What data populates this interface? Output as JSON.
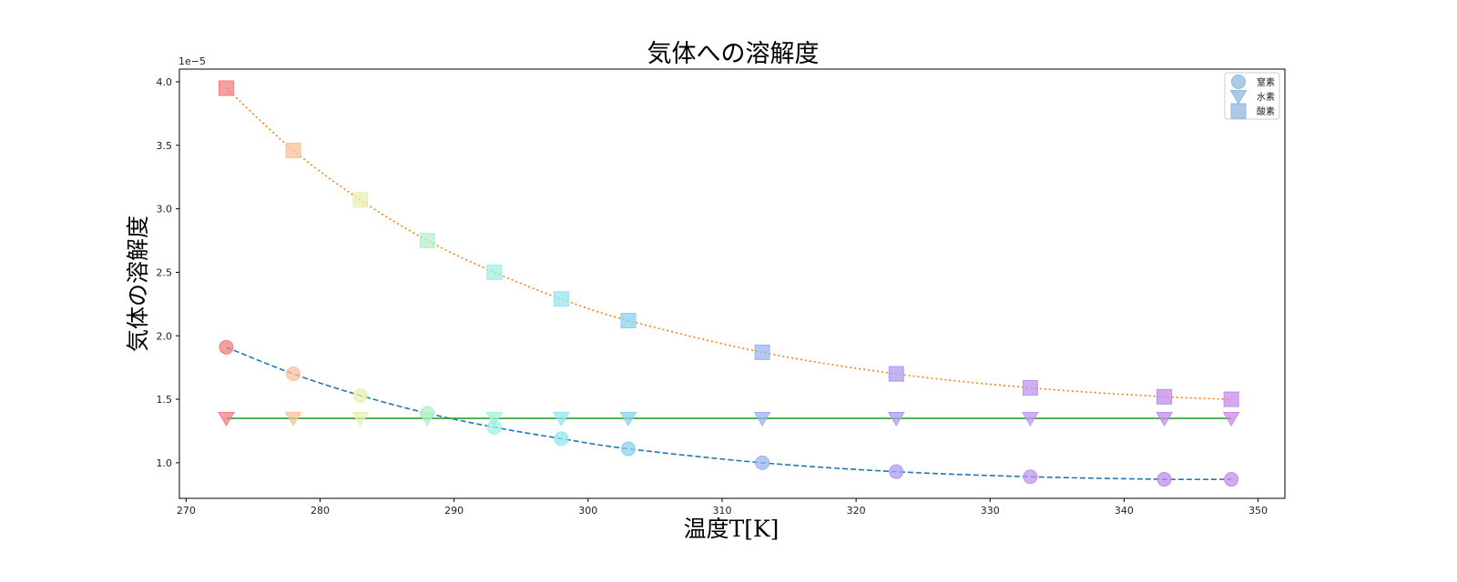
{
  "chart_data": {
    "type": "line",
    "title": "気体への溶解度",
    "xlabel": "温度T[K]",
    "ylabel": "気体の溶解度",
    "y_scale_label": "1e−5",
    "xlim": [
      269.5,
      352
    ],
    "ylim": [
      0.72,
      4.1
    ],
    "y_multiplier": 1e-05,
    "x_ticks": [
      270,
      280,
      290,
      300,
      310,
      320,
      330,
      340,
      350
    ],
    "y_ticks": [
      1.0,
      1.5,
      2.0,
      2.5,
      3.0,
      3.5,
      4.0
    ],
    "grid": false,
    "legend_position": "top-right",
    "x": [
      273,
      278,
      283,
      288,
      293,
      298,
      303,
      313,
      323,
      333,
      343,
      348
    ],
    "point_colors": [
      "#f28080",
      "#fcc29e",
      "#e6f0b4",
      "#b4f0c8",
      "#a0f0e1",
      "#96e6f0",
      "#8cd2f0",
      "#9ab4ee",
      "#ad9cee",
      "#c096ee",
      "#c08cee",
      "#c88ce8"
    ],
    "series": [
      {
        "name": "窒素",
        "marker": "circle",
        "line_color": "#1f77b4",
        "line_style": "dashed",
        "values": [
          1.91,
          1.7,
          1.53,
          1.39,
          1.28,
          1.19,
          1.11,
          1.0,
          0.93,
          0.89,
          0.87,
          0.87
        ]
      },
      {
        "name": "水素",
        "marker": "triangle-down",
        "line_color": "#2ca02c",
        "line_style": "solid",
        "values": [
          1.35,
          1.35,
          1.35,
          1.35,
          1.35,
          1.35,
          1.35,
          1.35,
          1.35,
          1.35,
          1.35,
          1.35
        ]
      },
      {
        "name": "酸素",
        "marker": "square",
        "line_color": "#ff7f0e",
        "line_style": "dotted",
        "values": [
          3.95,
          3.46,
          3.07,
          2.75,
          2.5,
          2.29,
          2.12,
          1.87,
          1.7,
          1.59,
          1.52,
          1.5
        ]
      }
    ],
    "legend_marker_color": "#8fb8dc"
  }
}
